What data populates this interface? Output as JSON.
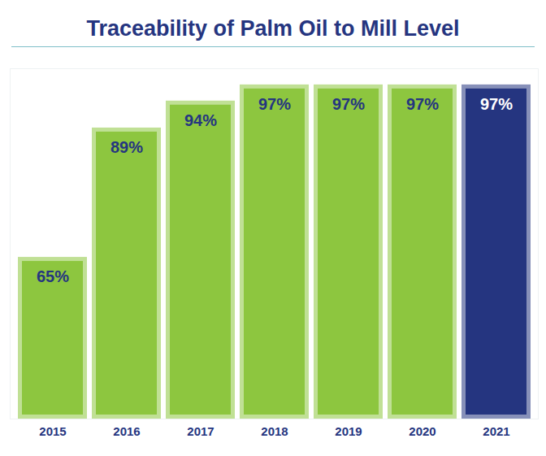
{
  "chart_data": {
    "type": "bar",
    "title": "Traceability of Palm Oil to Mill Level",
    "categories": [
      "2015",
      "2016",
      "2017",
      "2018",
      "2019",
      "2020",
      "2021"
    ],
    "values": [
      65,
      89,
      94,
      97,
      97,
      97,
      97
    ],
    "value_labels": [
      "65%",
      "89%",
      "94%",
      "97%",
      "97%",
      "97%",
      "97%"
    ],
    "colors": [
      "#8dc63f",
      "#8dc63f",
      "#8dc63f",
      "#8dc63f",
      "#8dc63f",
      "#8dc63f",
      "#253580"
    ],
    "ylim": [
      35,
      100
    ],
    "grid": false,
    "data_labels": true,
    "tick_labels": "x"
  }
}
